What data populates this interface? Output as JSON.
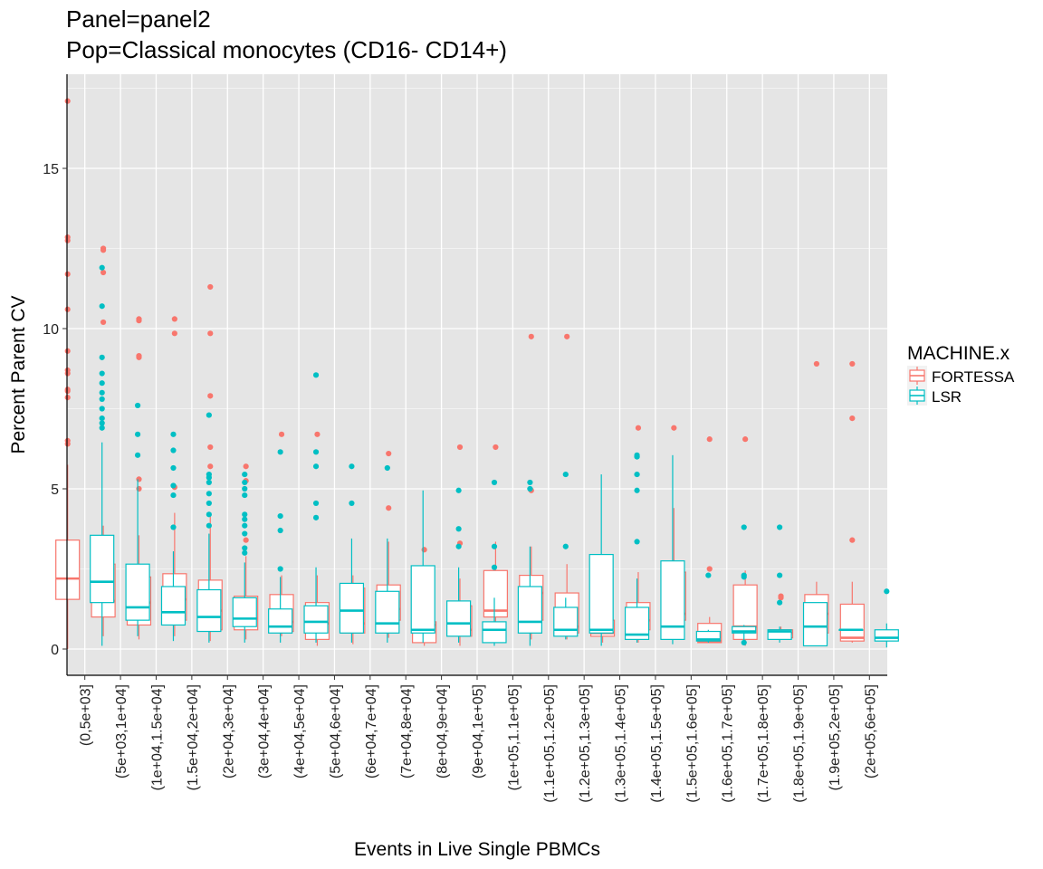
{
  "chart_data": {
    "type": "boxplot",
    "title_line1": "Panel=panel2",
    "title_line2": "Pop=Classical monocytes (CD16- CD14+)",
    "xlabel": "Events in Live Single PBMCs",
    "ylabel": "Percent Parent CV",
    "ylim": [
      -0.8,
      17.9
    ],
    "yticks": [
      0,
      5,
      10,
      15
    ],
    "grid": true,
    "legend": {
      "title": "MACHINE.x",
      "position": "right",
      "entries": [
        {
          "name": "FORTESSA",
          "color": "#F8766D"
        },
        {
          "name": "LSR",
          "color": "#00BFC4"
        }
      ]
    },
    "categories": [
      "(0,5e+03]",
      "(5e+03,1e+04]",
      "(1e+04,1.5e+04]",
      "(1.5e+04,2e+04]",
      "(2e+04,3e+04]",
      "(3e+04,4e+04]",
      "(4e+04,5e+04]",
      "(5e+04,6e+04]",
      "(6e+04,7e+04]",
      "(7e+04,8e+04]",
      "(8e+04,9e+04]",
      "(9e+04,1e+05]",
      "(1e+05,1.1e+05]",
      "(1.1e+05,1.2e+05]",
      "(1.2e+05,1.3e+05]",
      "(1.3e+05,1.4e+05]",
      "(1.4e+05,1.5e+05]",
      "(1.5e+05,1.6e+05]",
      "(1.6e+05,1.7e+05]",
      "(1.7e+05,1.8e+05]",
      "(1.8e+05,1.9e+05]",
      "(1.9e+05,2e+05]",
      "(2e+05,6e+05]"
    ],
    "series": [
      {
        "name": "FORTESSA",
        "color": "#F8766D",
        "boxes": [
          {
            "min": 0.0,
            "q1": 1.55,
            "median": 2.2,
            "q3": 3.4,
            "max": 5.75,
            "outliers": [
              6.4,
              6.5,
              7.85,
              8.05,
              8.1,
              8.6,
              8.7,
              9.3,
              10.6,
              11.7,
              12.75,
              12.85,
              17.1
            ]
          },
          {
            "min": 0.4,
            "q1": 1.0,
            "median": 1.5,
            "q3": 2.65,
            "max": 3.85,
            "outliers": [
              10.2,
              11.75,
              12.45,
              12.5
            ]
          },
          {
            "min": 0.3,
            "q1": 0.75,
            "median": 1.45,
            "q3": 2.25,
            "max": 3.55,
            "outliers": [
              5.0,
              5.3,
              9.1,
              9.15,
              10.25,
              10.3
            ]
          },
          {
            "min": 0.4,
            "q1": 0.9,
            "median": 1.55,
            "q3": 2.35,
            "max": 4.25,
            "outliers": [
              5.05,
              9.85,
              10.3
            ]
          },
          {
            "min": 0.25,
            "q1": 0.6,
            "median": 1.2,
            "q3": 2.15,
            "max": 4.25,
            "outliers": [
              5.7,
              6.3,
              7.9,
              9.85,
              11.3
            ]
          },
          {
            "min": 0.3,
            "q1": 0.6,
            "median": 0.95,
            "q3": 1.65,
            "max": 2.9,
            "outliers": [
              3.4,
              5.25,
              5.7
            ]
          },
          {
            "min": 0.4,
            "q1": 0.55,
            "median": 0.85,
            "q3": 1.7,
            "max": 2.3,
            "outliers": [
              6.7
            ]
          },
          {
            "min": 0.1,
            "q1": 0.3,
            "median": 0.8,
            "q3": 1.45,
            "max": 2.3,
            "outliers": [
              6.7
            ]
          },
          {
            "min": 0.15,
            "q1": 0.5,
            "median": 0.8,
            "q3": 1.9,
            "max": 2.3,
            "outliers": []
          },
          {
            "min": 0.35,
            "q1": 0.9,
            "median": 1.25,
            "q3": 2.0,
            "max": 3.35,
            "outliers": [
              4.4,
              6.1
            ]
          },
          {
            "min": 0.1,
            "q1": 0.2,
            "median": 0.75,
            "q3": 0.85,
            "max": 1.5,
            "outliers": [
              3.1
            ]
          },
          {
            "min": 0.1,
            "q1": 0.4,
            "median": 0.6,
            "q3": 1.35,
            "max": 2.2,
            "outliers": [
              3.3,
              6.3
            ]
          },
          {
            "min": 0.8,
            "q1": 1.0,
            "median": 1.2,
            "q3": 2.45,
            "max": 3.35,
            "outliers": [
              6.3
            ]
          },
          {
            "min": 0.3,
            "q1": 0.9,
            "median": 1.75,
            "q3": 2.3,
            "max": 3.2,
            "outliers": [
              4.95,
              9.75
            ]
          },
          {
            "min": 0.3,
            "q1": 0.5,
            "median": 0.7,
            "q3": 1.75,
            "max": 2.65,
            "outliers": [
              9.75
            ]
          },
          {
            "min": 0.2,
            "q1": 0.4,
            "median": 0.5,
            "q3": 0.9,
            "max": 1.4,
            "outliers": [
              1.75
            ]
          },
          {
            "min": 0.2,
            "q1": 0.6,
            "median": 0.9,
            "q3": 1.45,
            "max": 2.4,
            "outliers": [
              6.9
            ]
          },
          {
            "min": 0.5,
            "q1": 0.9,
            "median": 1.1,
            "q3": 2.4,
            "max": 4.4,
            "outliers": [
              6.9
            ]
          },
          {
            "min": 0.2,
            "q1": 0.2,
            "median": 0.25,
            "q3": 0.8,
            "max": 1.0,
            "outliers": [
              2.5,
              6.55
            ]
          },
          {
            "min": 0.1,
            "q1": 0.3,
            "median": 0.7,
            "q3": 2.0,
            "max": 2.45,
            "outliers": [
              6.55
            ]
          },
          {
            "min": 0.3,
            "q1": 0.35,
            "median": 0.5,
            "q3": 0.6,
            "max": 0.7,
            "outliers": [
              1.6,
              1.65
            ]
          },
          {
            "min": 0.3,
            "q1": 0.5,
            "median": 1.1,
            "q3": 1.7,
            "max": 2.1,
            "outliers": [
              8.9
            ]
          },
          {
            "min": 0.2,
            "q1": 0.25,
            "median": 0.35,
            "q3": 1.4,
            "max": 2.1,
            "outliers": [
              3.4,
              7.2,
              8.9
            ]
          }
        ]
      },
      {
        "name": "LSR",
        "color": "#00BFC4",
        "boxes": [
          {
            "min": 0.1,
            "q1": 1.45,
            "median": 2.1,
            "q3": 3.55,
            "max": 6.45,
            "outliers": [
              6.9,
              7.05,
              7.2,
              7.5,
              7.8,
              8.0,
              8.3,
              8.6,
              9.1,
              10.7,
              11.9
            ]
          },
          {
            "min": 0.4,
            "q1": 0.9,
            "median": 1.3,
            "q3": 2.65,
            "max": 5.3,
            "outliers": [
              6.05,
              6.7,
              7.6
            ]
          },
          {
            "min": 0.25,
            "q1": 0.75,
            "median": 1.15,
            "q3": 1.95,
            "max": 3.05,
            "outliers": [
              3.8,
              4.8,
              5.1,
              5.65,
              6.2,
              6.7
            ]
          },
          {
            "min": 0.2,
            "q1": 0.55,
            "median": 1.0,
            "q3": 1.85,
            "max": 3.6,
            "outliers": [
              3.85,
              4.2,
              4.55,
              4.85,
              5.2,
              5.35,
              5.45,
              7.3
            ]
          },
          {
            "min": 0.2,
            "q1": 0.7,
            "median": 0.95,
            "q3": 1.6,
            "max": 2.7,
            "outliers": [
              3.0,
              3.15,
              3.6,
              3.85,
              4.05,
              4.2,
              4.8,
              5.0,
              5.2,
              5.45
            ]
          },
          {
            "min": 0.2,
            "q1": 0.5,
            "median": 0.7,
            "q3": 1.25,
            "max": 2.25,
            "outliers": [
              2.5,
              3.7,
              4.15,
              6.15
            ]
          },
          {
            "min": 0.2,
            "q1": 0.5,
            "median": 0.85,
            "q3": 1.35,
            "max": 2.55,
            "outliers": [
              4.1,
              4.55,
              5.7,
              6.15,
              8.55
            ]
          },
          {
            "min": 0.2,
            "q1": 0.5,
            "median": 1.2,
            "q3": 2.05,
            "max": 3.45,
            "outliers": [
              4.55,
              5.7
            ]
          },
          {
            "min": 0.2,
            "q1": 0.5,
            "median": 0.8,
            "q3": 1.8,
            "max": 3.45,
            "outliers": [
              5.65
            ]
          },
          {
            "min": 0.2,
            "q1": 0.5,
            "median": 0.6,
            "q3": 2.6,
            "max": 4.95,
            "outliers": []
          },
          {
            "min": 0.2,
            "q1": 0.4,
            "median": 0.8,
            "q3": 1.5,
            "max": 2.55,
            "outliers": [
              3.2,
              3.75,
              4.95
            ]
          },
          {
            "min": 0.1,
            "q1": 0.2,
            "median": 0.6,
            "q3": 0.85,
            "max": 1.6,
            "outliers": [
              2.55,
              3.2,
              5.2
            ]
          },
          {
            "min": 0.1,
            "q1": 0.5,
            "median": 0.85,
            "q3": 1.95,
            "max": 3.2,
            "outliers": [
              5.0,
              5.2
            ]
          },
          {
            "min": 0.3,
            "q1": 0.4,
            "median": 0.6,
            "q3": 1.3,
            "max": 1.6,
            "outliers": [
              3.2,
              5.45
            ]
          },
          {
            "min": 0.1,
            "q1": 0.5,
            "median": 0.6,
            "q3": 2.95,
            "max": 5.45,
            "outliers": []
          },
          {
            "min": 0.2,
            "q1": 0.3,
            "median": 0.45,
            "q3": 1.3,
            "max": 2.2,
            "outliers": [
              3.35,
              4.95,
              5.45,
              6.0,
              6.05
            ]
          },
          {
            "min": 0.15,
            "q1": 0.3,
            "median": 0.7,
            "q3": 2.75,
            "max": 6.05,
            "outliers": []
          },
          {
            "min": 0.2,
            "q1": 0.25,
            "median": 0.3,
            "q3": 0.55,
            "max": 0.6,
            "outliers": [
              2.3
            ]
          },
          {
            "min": 0.2,
            "q1": 0.5,
            "median": 0.55,
            "q3": 0.7,
            "max": 0.75,
            "outliers": [
              0.2,
              2.25,
              2.3,
              3.8
            ]
          },
          {
            "min": 0.2,
            "q1": 0.3,
            "median": 0.55,
            "q3": 0.6,
            "max": 0.7,
            "outliers": [
              1.45,
              2.3,
              3.8
            ]
          },
          {
            "min": 0.1,
            "q1": 0.1,
            "median": 0.7,
            "q3": 1.45,
            "max": 1.45,
            "outliers": []
          },
          {
            "min": 0.6,
            "q1": 0.6,
            "median": 0.6,
            "q3": 0.6,
            "max": 0.6,
            "outliers": []
          },
          {
            "min": 0.05,
            "q1": 0.25,
            "median": 0.35,
            "q3": 0.6,
            "max": 0.8,
            "outliers": [
              1.8
            ]
          }
        ]
      }
    ]
  }
}
